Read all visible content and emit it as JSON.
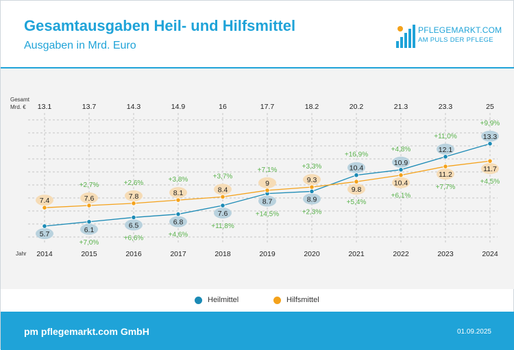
{
  "header": {
    "title": "Gesamtausgaben Heil- und Hilfsmittel",
    "subtitle": "Ausgaben in Mrd. Euro"
  },
  "logo": {
    "name": "PFLEGEMARKT.COM",
    "tagline": "AM PULS DER PFLEGE"
  },
  "footer": {
    "company": "pm pflegemarkt.com GmbH",
    "date": "01.09.2025"
  },
  "colors": {
    "brand": "#1fa3d8",
    "heilmittel": "#1b8ab5",
    "heilmittel_label_bg": "#b9d2de",
    "hilfsmittel": "#f4a21b",
    "hilfsmittel_label_bg": "#f6dcb6",
    "change_text": "#59b24b"
  },
  "chart_data": {
    "type": "line",
    "x_title": "Jahr",
    "total_title": [
      "Gesamt",
      "Mrd. €"
    ],
    "categories": [
      "2014",
      "2015",
      "2016",
      "2017",
      "2018",
      "2019",
      "2020",
      "2021",
      "2022",
      "2023",
      "2024"
    ],
    "totals": [
      "13.1",
      "13.7",
      "14.3",
      "14.9",
      "16",
      "17.7",
      "18.2",
      "20.2",
      "21.3",
      "23.3",
      "25"
    ],
    "ylim": [
      4,
      15.5
    ],
    "grid": true,
    "legend_position": "bottom",
    "series": [
      {
        "name": "Heilmittel",
        "values": [
          5.7,
          6.1,
          6.5,
          6.8,
          7.6,
          8.7,
          8.9,
          10.4,
          10.9,
          12.1,
          13.3
        ],
        "labels": [
          "5.7",
          "6.1",
          "6.5",
          "6.8",
          "7.6",
          "8.7",
          "8.9",
          "10.4",
          "10.9",
          "12.1",
          "13.3"
        ],
        "changes": [
          "",
          "+7,0%",
          "+6,6%",
          "+4,6%",
          "+11,8%",
          "+14,5%",
          "+2,3%",
          "+16,9%",
          "+4,8%",
          "+11,0%",
          "+9,9%"
        ]
      },
      {
        "name": "Hilfsmittel",
        "values": [
          7.4,
          7.6,
          7.8,
          8.1,
          8.4,
          9,
          9.3,
          9.8,
          10.4,
          11.2,
          11.7
        ],
        "labels": [
          "7.4",
          "7.6",
          "7.8",
          "8.1",
          "8.4",
          "9",
          "9.3",
          "9.8",
          "10.4",
          "11.2",
          "11.7"
        ],
        "changes": [
          "",
          "+2,7%",
          "+2,6%",
          "+3,8%",
          "+3,7%",
          "+7,1%",
          "+3,3%",
          "+5,4%",
          "+6,1%",
          "+7,7%",
          "+4,5%"
        ]
      }
    ]
  }
}
